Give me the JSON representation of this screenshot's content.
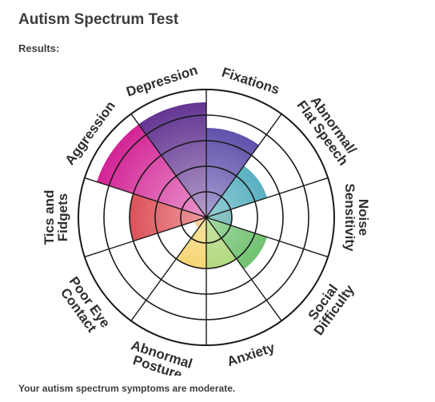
{
  "page": {
    "title": "Autism Spectrum Test",
    "results_label": "Results:",
    "summary": "Your autism spectrum symptoms are moderate."
  },
  "chart_data": {
    "type": "polar-area",
    "max": 5,
    "grid": true,
    "categories": [
      {
        "label": [
          "Fixations"
        ],
        "value": 3.5,
        "color": "#3f2f9a"
      },
      {
        "label": [
          "Abnormal/",
          "Flat Speech"
        ],
        "value": 2.5,
        "color": "#1a93a8"
      },
      {
        "label": [
          "Noise",
          "Sensitivity"
        ],
        "value": 1.0,
        "color": "#1a8a8e"
      },
      {
        "label": [
          "Social",
          "Difficulty"
        ],
        "value": 2.5,
        "color": "#3aaa3a"
      },
      {
        "label": [
          "Anxiety"
        ],
        "value": 2.0,
        "color": "#8cc63f"
      },
      {
        "label": [
          "Abnormal",
          "Posture"
        ],
        "value": 2.0,
        "color": "#f2c12e"
      },
      {
        "label": [
          "Poor Eye",
          "Contact"
        ],
        "value": 0.5,
        "color": "#f29f3a"
      },
      {
        "label": [
          "Tics and",
          "Fidgets"
        ],
        "value": 3.0,
        "color": "#d4212a"
      },
      {
        "label": [
          "Aggression"
        ],
        "value": 4.5,
        "color": "#d0178f"
      },
      {
        "label": [
          "Depression"
        ],
        "value": 4.5,
        "color": "#5a2a8c"
      }
    ]
  }
}
